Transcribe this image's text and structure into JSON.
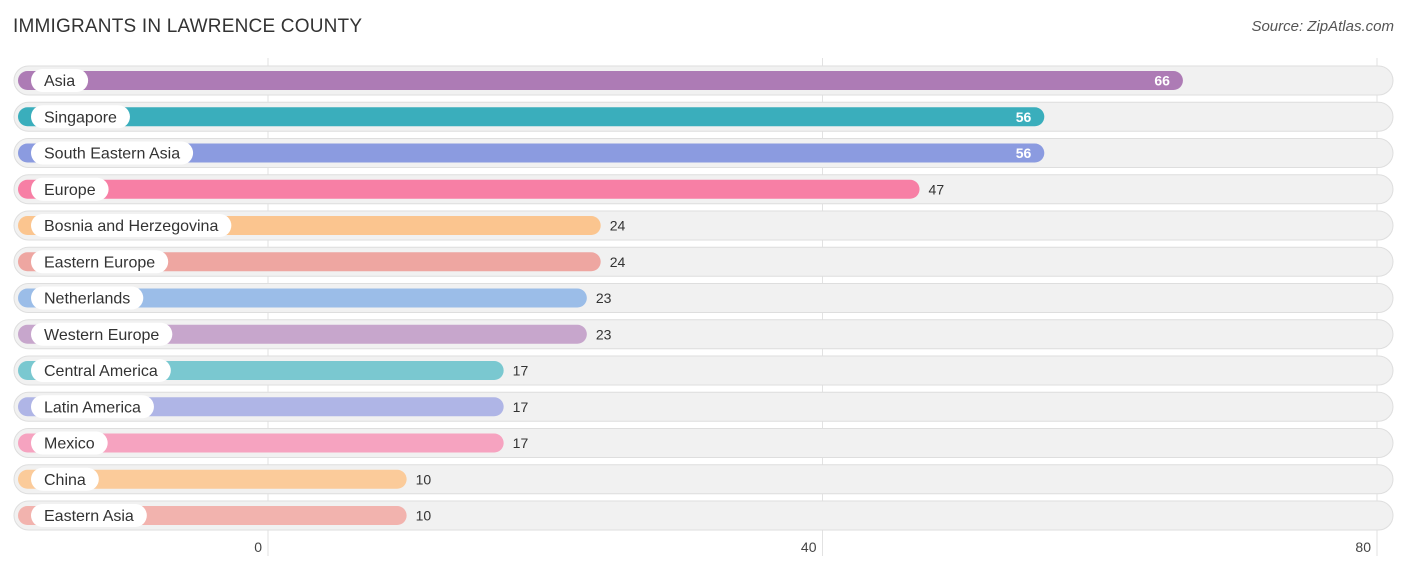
{
  "header": {
    "title": "IMMIGRANTS IN LAWRENCE COUNTY",
    "source": "Source: ZipAtlas.com"
  },
  "chart_data": {
    "type": "bar",
    "orientation": "horizontal",
    "title": "IMMIGRANTS IN LAWRENCE COUNTY",
    "xlim": [
      0,
      80
    ],
    "xticks": [
      0,
      40,
      80
    ],
    "grid": true,
    "categories": [
      "Asia",
      "Singapore",
      "South Eastern Asia",
      "Europe",
      "Bosnia and Herzegovina",
      "Eastern Europe",
      "Netherlands",
      "Western Europe",
      "Central America",
      "Latin America",
      "Mexico",
      "China",
      "Eastern Asia"
    ],
    "values": [
      66,
      56,
      56,
      47,
      24,
      24,
      23,
      23,
      17,
      17,
      17,
      10,
      10
    ],
    "colors": [
      "#ad7bb5",
      "#3aaebc",
      "#8b9be0",
      "#f77fa5",
      "#fbc58f",
      "#eea6a1",
      "#9bbde8",
      "#c7a6cc",
      "#7ac8d0",
      "#afb5e6",
      "#f6a3c0",
      "#fbcb9a",
      "#f2b3ae"
    ]
  }
}
